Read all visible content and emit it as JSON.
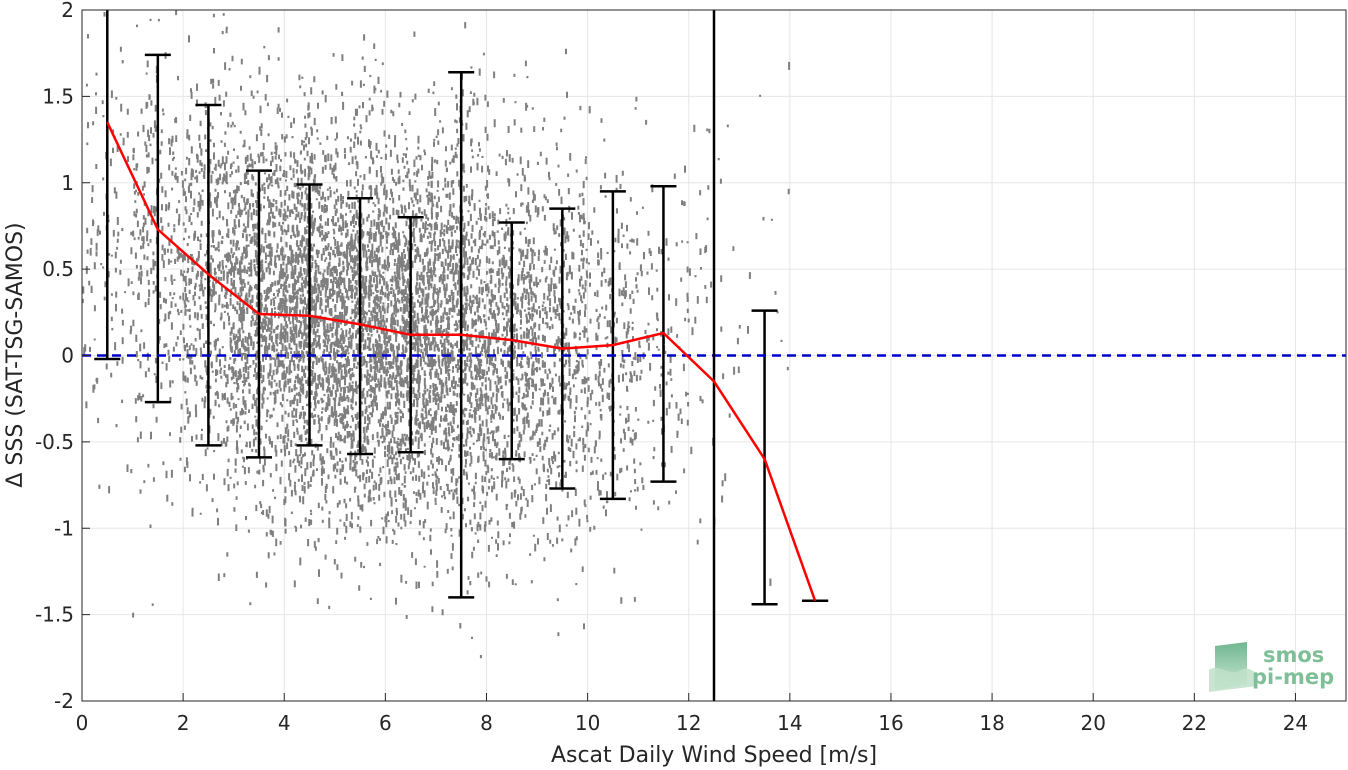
{
  "chart_data": {
    "type": "scatter",
    "xlabel": "Ascat Daily Wind Speed [m/s]",
    "ylabel": "Δ SSS (SAT-TSG-SAMOS)",
    "xlim": [
      0,
      25
    ],
    "ylim": [
      -2,
      2
    ],
    "xticks": [
      0,
      2,
      4,
      6,
      8,
      10,
      12,
      14,
      16,
      18,
      20,
      22,
      24
    ],
    "yticks": [
      -2,
      -1.5,
      -1,
      -0.5,
      0,
      0.5,
      1,
      1.5,
      2
    ],
    "grid": true,
    "scatter_color": "#7f7f7f",
    "mean_line": {
      "color": "#ff0000",
      "x": [
        0.5,
        1.5,
        2.5,
        3.5,
        4.5,
        5.5,
        6.5,
        7.5,
        8.5,
        9.5,
        10.5,
        11.5,
        12.5,
        13.5,
        14.5
      ],
      "y": [
        1.35,
        0.73,
        0.47,
        0.24,
        0.23,
        0.18,
        0.12,
        0.12,
        0.09,
        0.04,
        0.06,
        0.13,
        -0.15,
        -0.6,
        -1.42
      ]
    },
    "error_bars": {
      "color": "#000000",
      "x": [
        0.5,
        1.5,
        2.5,
        3.5,
        4.5,
        5.5,
        6.5,
        7.5,
        8.5,
        9.5,
        10.5,
        11.5,
        13.5,
        14.5
      ],
      "lower": [
        -0.02,
        -0.27,
        -0.52,
        -0.59,
        -0.52,
        -0.57,
        -0.56,
        -1.4,
        -0.6,
        -0.77,
        -0.83,
        -0.73,
        -1.44,
        -1.42
      ],
      "upper": [
        2.1,
        1.74,
        1.45,
        1.07,
        0.99,
        0.91,
        0.8,
        1.64,
        0.77,
        0.85,
        0.95,
        0.98,
        0.26,
        -1.42
      ]
    },
    "zero_line": {
      "y": 0,
      "color": "#0000cc",
      "style": "dashed"
    },
    "vertical_line": {
      "x": 12.5,
      "color": "#000000"
    }
  },
  "logo": {
    "line1": "smos",
    "line2": "pi-mep"
  }
}
